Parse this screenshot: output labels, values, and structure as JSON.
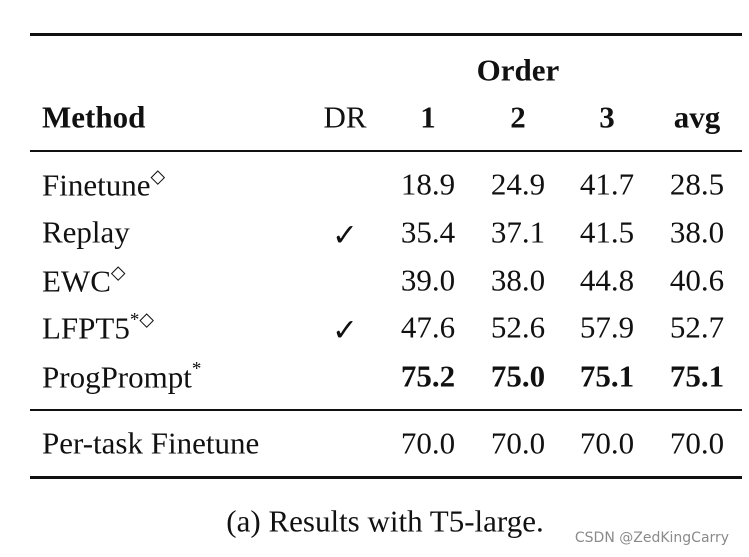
{
  "table": {
    "order_label": "Order",
    "columns": [
      "Method",
      "DR",
      "1",
      "2",
      "3",
      "avg"
    ],
    "rows": [
      {
        "method": "Finetune",
        "sup": "◇",
        "values": [
          "18.9",
          "24.9",
          "41.7",
          "28.5"
        ]
      },
      {
        "method": "Replay",
        "dr": "✓",
        "values": [
          "35.4",
          "37.1",
          "41.5",
          "38.0"
        ]
      },
      {
        "method": "EWC",
        "sup": "◇",
        "values": [
          "39.0",
          "38.0",
          "44.8",
          "40.6"
        ]
      },
      {
        "method": "LFPT5",
        "sup": "*◇",
        "dr": "✓",
        "values": [
          "47.6",
          "52.6",
          "57.9",
          "52.7"
        ]
      },
      {
        "method": "ProgPrompt",
        "sup": "*",
        "values": [
          "75.2",
          "75.0",
          "75.1",
          "75.1"
        ],
        "bold": true
      }
    ],
    "footer_row": {
      "method": "Per-task Finetune",
      "values": [
        "70.0",
        "70.0",
        "70.0",
        "70.0"
      ]
    }
  },
  "caption": "(a) Results with T5-large.",
  "watermark": "CSDN @ZedKingCarry"
}
